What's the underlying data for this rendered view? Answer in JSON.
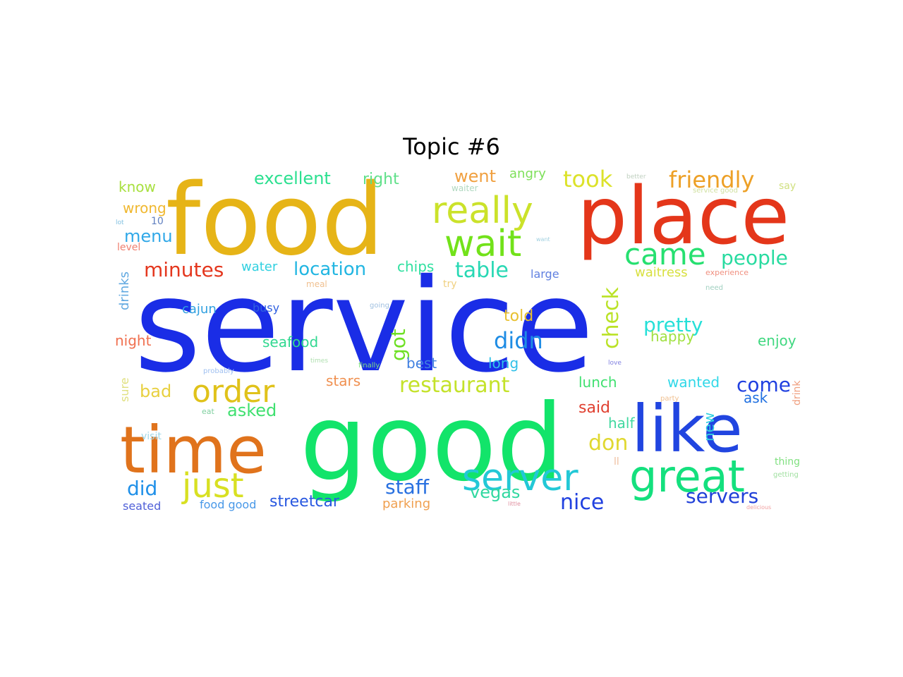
{
  "title": "Topic #6",
  "words": [
    {
      "text": "service",
      "color": "#1a2de6"
    },
    {
      "text": "good",
      "color": "#12e46a"
    },
    {
      "text": "food",
      "color": "#e6b417"
    },
    {
      "text": "place",
      "color": "#e4361a"
    },
    {
      "text": "like",
      "color": "#2145e0"
    },
    {
      "text": "time",
      "color": "#e0731c"
    },
    {
      "text": "really",
      "color": "#cbe22a"
    },
    {
      "text": "wait",
      "color": "#72e21a"
    },
    {
      "text": "great",
      "color": "#14e07e"
    },
    {
      "text": "server",
      "color": "#22c8d6"
    },
    {
      "text": "came",
      "color": "#26e070"
    },
    {
      "text": "just",
      "color": "#d8e022"
    },
    {
      "text": "order",
      "color": "#e0c21a"
    },
    {
      "text": "friendly",
      "color": "#eda026"
    },
    {
      "text": "people",
      "color": "#28dba0"
    },
    {
      "text": "took",
      "color": "#dce22a"
    },
    {
      "text": "table",
      "color": "#28d8b4"
    },
    {
      "text": "minutes",
      "color": "#e4371e"
    },
    {
      "text": "location",
      "color": "#22b6e2"
    },
    {
      "text": "check",
      "color": "#bae226"
    },
    {
      "text": "didn",
      "color": "#1e8ce4"
    },
    {
      "text": "pretty",
      "color": "#26e0d8"
    },
    {
      "text": "got",
      "color": "#6ee024"
    },
    {
      "text": "restaurant",
      "color": "#c4e22a"
    },
    {
      "text": "excellent",
      "color": "#2ce090"
    },
    {
      "text": "right",
      "color": "#60e08a"
    },
    {
      "text": "went",
      "color": "#f0a040"
    },
    {
      "text": "angry",
      "color": "#7ee05a"
    },
    {
      "text": "know",
      "color": "#a8e040"
    },
    {
      "text": "wrong",
      "color": "#f0b830"
    },
    {
      "text": "menu",
      "color": "#30a8e8"
    },
    {
      "text": "waiter",
      "color": "#b0d8c0"
    },
    {
      "text": "water",
      "color": "#30d0e0"
    },
    {
      "text": "chips",
      "color": "#30e0a0"
    },
    {
      "text": "waitress",
      "color": "#d8e040"
    },
    {
      "text": "large",
      "color": "#6080e0"
    },
    {
      "text": "drinks",
      "color": "#60a8e0"
    },
    {
      "text": "cajun",
      "color": "#30a0e0"
    },
    {
      "text": "busy",
      "color": "#3060e0"
    },
    {
      "text": "told",
      "color": "#e8c030"
    },
    {
      "text": "happy",
      "color": "#a0e040"
    },
    {
      "text": "enjoy",
      "color": "#40d880"
    },
    {
      "text": "night",
      "color": "#f07050"
    },
    {
      "text": "seafood",
      "color": "#30d890"
    },
    {
      "text": "best",
      "color": "#4080e0"
    },
    {
      "text": "long",
      "color": "#30c0e8"
    },
    {
      "text": "bad",
      "color": "#e8d040"
    },
    {
      "text": "stars",
      "color": "#f09050"
    },
    {
      "text": "lunch",
      "color": "#40e070"
    },
    {
      "text": "wanted",
      "color": "#30d8e8"
    },
    {
      "text": "come",
      "color": "#2040e0"
    },
    {
      "text": "ask",
      "color": "#2070e0"
    },
    {
      "text": "asked",
      "color": "#40e070"
    },
    {
      "text": "said",
      "color": "#e04030"
    },
    {
      "text": "don",
      "color": "#e0d830"
    },
    {
      "text": "half",
      "color": "#40d8a0"
    },
    {
      "text": "new",
      "color": "#30d0e0"
    },
    {
      "text": "sure",
      "color": "#e0e080"
    },
    {
      "text": "did",
      "color": "#2090e8"
    },
    {
      "text": "staff",
      "color": "#2870e0"
    },
    {
      "text": "vegas",
      "color": "#30d8a0"
    },
    {
      "text": "nice",
      "color": "#2040e0"
    },
    {
      "text": "servers",
      "color": "#2040d8"
    },
    {
      "text": "streetcar",
      "color": "#2858e0"
    },
    {
      "text": "parking",
      "color": "#f0a050"
    },
    {
      "text": "seated",
      "color": "#5060d8"
    },
    {
      "text": "food good",
      "color": "#4898e8"
    },
    {
      "text": "visit",
      "color": "#a0d8e8"
    },
    {
      "text": "eat",
      "color": "#80d0a0"
    },
    {
      "text": "ll",
      "color": "#f0c0a0"
    },
    {
      "text": "thing",
      "color": "#80e080"
    },
    {
      "text": "getting",
      "color": "#a0e0a0"
    },
    {
      "text": "drink",
      "color": "#f0a080"
    },
    {
      "text": "party",
      "color": "#f0c090"
    },
    {
      "text": "love",
      "color": "#8080e0"
    },
    {
      "text": "experience",
      "color": "#f09080"
    },
    {
      "text": "need",
      "color": "#a0d0c0"
    },
    {
      "text": "level",
      "color": "#f08070"
    },
    {
      "text": "10",
      "color": "#6080c0"
    },
    {
      "text": "lot",
      "color": "#80c0e0"
    },
    {
      "text": "meal",
      "color": "#f0c090"
    },
    {
      "text": "try",
      "color": "#f0d080"
    },
    {
      "text": "going",
      "color": "#a0c0e0"
    },
    {
      "text": "say",
      "color": "#d0e080"
    },
    {
      "text": "better",
      "color": "#c0d0c0"
    },
    {
      "text": "service good",
      "color": "#d0e0a0"
    },
    {
      "text": "want",
      "color": "#a0d0e0"
    },
    {
      "text": "finally",
      "color": "#80e080"
    },
    {
      "text": "times",
      "color": "#b0e0b0"
    },
    {
      "text": "probably",
      "color": "#a0c0f0"
    },
    {
      "text": "little",
      "color": "#e090a0"
    },
    {
      "text": "delicious",
      "color": "#f0a0a0"
    }
  ]
}
